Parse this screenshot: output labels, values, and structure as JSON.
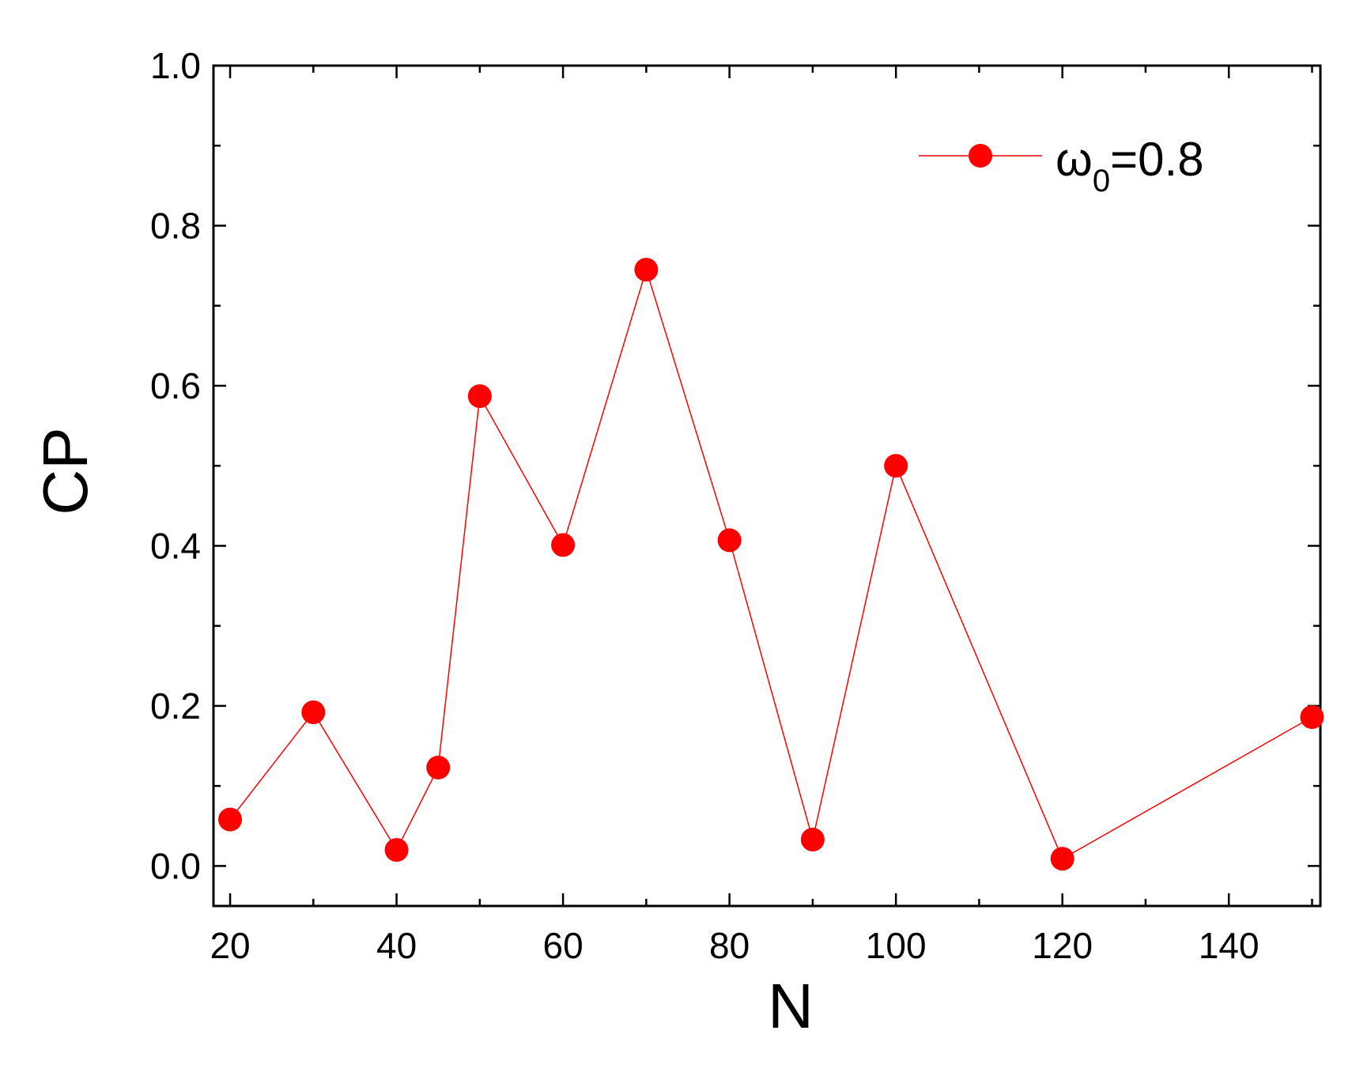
{
  "chart_data": {
    "type": "line",
    "xlabel": "N",
    "ylabel": "CP",
    "xlim": [
      18,
      151
    ],
    "ylim": [
      -0.05,
      1.0
    ],
    "x_ticks": [
      20,
      40,
      60,
      80,
      100,
      120,
      140
    ],
    "x_tick_labels": [
      "20",
      "40",
      "60",
      "80",
      "100",
      "120",
      "140"
    ],
    "x_minor_ticks": [
      30,
      50,
      70,
      90,
      110,
      130,
      150
    ],
    "y_ticks": [
      0.0,
      0.2,
      0.4,
      0.6,
      0.8,
      1.0
    ],
    "y_tick_labels": [
      "0.0",
      "0.2",
      "0.4",
      "0.6",
      "0.8",
      "1.0"
    ],
    "y_minor_ticks": [
      0.1,
      0.3,
      0.5,
      0.7,
      0.9
    ],
    "grid": false,
    "legend_position": "top-right",
    "series": [
      {
        "name": "ω0=0.8",
        "legend_symbol": "ω",
        "legend_subscript": "0",
        "legend_value": "=0.8",
        "color": "#ff0000",
        "x": [
          20,
          30,
          40,
          45,
          50,
          60,
          70,
          80,
          90,
          100,
          120,
          150
        ],
        "y": [
          0.058,
          0.192,
          0.02,
          0.123,
          0.587,
          0.401,
          0.745,
          0.407,
          0.033,
          0.5,
          0.009,
          0.186
        ]
      }
    ]
  }
}
